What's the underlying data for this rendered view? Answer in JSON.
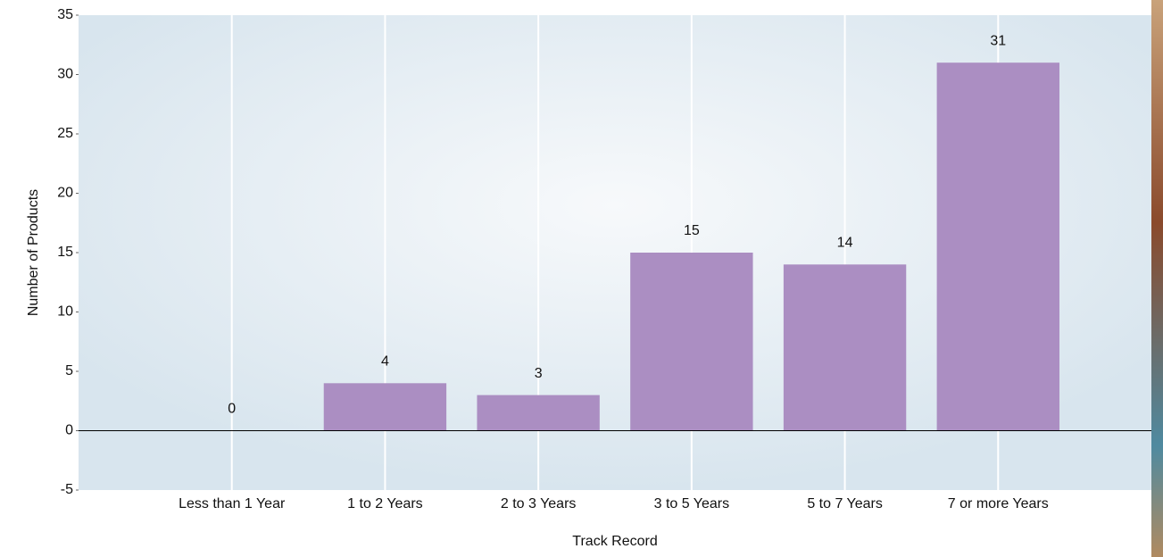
{
  "chart_data": {
    "type": "bar",
    "x_label": "Track Record",
    "y_label": "Number of Products",
    "categories": [
      "Less than 1 Year",
      "1 to 2 Years",
      "2 to 3 Years",
      "3 to 5 Years",
      "5 to 7 Years",
      "7 or more Years"
    ],
    "values": [
      0,
      4,
      3,
      15,
      14,
      31
    ],
    "color": "#ab8ec2",
    "ylim": [
      -5,
      35
    ],
    "yticks": [
      -5,
      0,
      5,
      10,
      15,
      20,
      25,
      30,
      35
    ],
    "grid": true
  }
}
